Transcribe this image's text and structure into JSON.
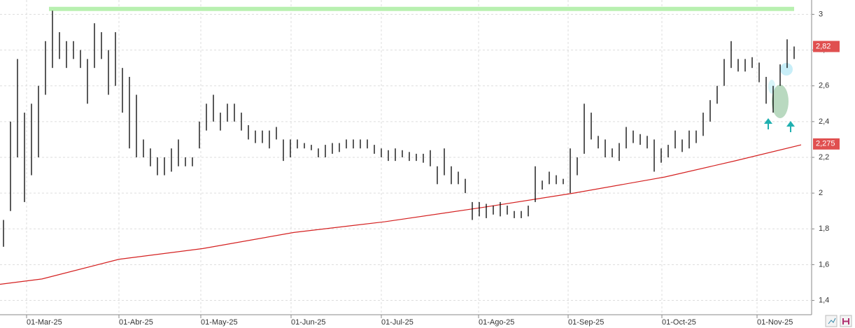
{
  "chart_data": {
    "type": "ohlc",
    "xlim": [
      -0.5,
      115.5
    ],
    "xticks": [
      {
        "value": 3.3,
        "label": "01-Mar-25"
      },
      {
        "value": 16.5,
        "label": "01-Abr-25"
      },
      {
        "value": 28.2,
        "label": "01-May-25"
      },
      {
        "value": 41.1,
        "label": "01-Jun-25"
      },
      {
        "value": 54,
        "label": "01-Jul-25"
      },
      {
        "value": 67.9,
        "label": "01-Ago-25"
      },
      {
        "value": 80.7,
        "label": "01-Sep-25"
      },
      {
        "value": 94.1,
        "label": "01-Oct-25"
      },
      {
        "value": 107.7,
        "label": "01-Nov-25"
      }
    ],
    "ylim": [
      1.32,
      3.08
    ],
    "yticks": [
      {
        "value": 1.4,
        "label": "1,4"
      },
      {
        "value": 1.6,
        "label": "1,6"
      },
      {
        "value": 1.8,
        "label": "1,8"
      },
      2,
      {
        "value": 2.2,
        "label": "2,2"
      },
      {
        "value": 2.4,
        "label": "2,4"
      },
      {
        "value": 2.6,
        "label": "2,6"
      },
      {
        "value": 2.8,
        "label": "2,8"
      },
      3
    ],
    "grid": true,
    "color": "#000000",
    "high": [
      1.85,
      2.4,
      2.75,
      2.45,
      2.5,
      2.6,
      2.85,
      3.02,
      2.9,
      2.85,
      2.85,
      2.8,
      2.75,
      2.95,
      2.9,
      2.8,
      2.9,
      2.7,
      2.65,
      2.55,
      2.3,
      2.25,
      2.2,
      2.2,
      2.25,
      2.3,
      2.2,
      2.2,
      2.4,
      2.5,
      2.55,
      2.45,
      2.5,
      2.5,
      2.45,
      2.38,
      2.35,
      2.35,
      2.35,
      2.37,
      2.3,
      2.3,
      2.3,
      2.28,
      2.27,
      2.25,
      2.27,
      2.28,
      2.28,
      2.3,
      2.3,
      2.3,
      2.3,
      2.27,
      2.25,
      2.24,
      2.25,
      2.24,
      2.23,
      2.22,
      2.22,
      2.24,
      2.15,
      2.25,
      2.15,
      2.12,
      2.08,
      1.95,
      1.95,
      1.94,
      1.93,
      1.95,
      1.93,
      1.9,
      1.9,
      1.93,
      2.15,
      2.07,
      2.12,
      2.1,
      2.08,
      2.25,
      2.2,
      2.5,
      2.45,
      2.32,
      2.3,
      2.25,
      2.28,
      2.37,
      2.35,
      2.33,
      2.32,
      2.3,
      2.25,
      2.27,
      2.35,
      2.3,
      2.35,
      2.35,
      2.45,
      2.52,
      2.6,
      2.75,
      2.85,
      2.75,
      2.75,
      2.76,
      2.73,
      2.65,
      2.6,
      2.72,
      2.86,
      2.82
    ],
    "low": [
      1.7,
      1.9,
      2.2,
      1.95,
      2.1,
      2.2,
      2.55,
      2.7,
      2.75,
      2.7,
      2.75,
      2.7,
      2.5,
      2.7,
      2.75,
      2.55,
      2.6,
      2.45,
      2.25,
      2.2,
      2.2,
      2.15,
      2.1,
      2.1,
      2.12,
      2.15,
      2.15,
      2.15,
      2.25,
      2.35,
      2.4,
      2.35,
      2.4,
      2.4,
      2.35,
      2.3,
      2.28,
      2.28,
      2.25,
      2.3,
      2.18,
      2.2,
      2.25,
      2.25,
      2.24,
      2.2,
      2.2,
      2.22,
      2.23,
      2.25,
      2.25,
      2.25,
      2.25,
      2.22,
      2.2,
      2.18,
      2.18,
      2.2,
      2.18,
      2.18,
      2.17,
      2.15,
      2.05,
      2.1,
      2.05,
      2.05,
      2.0,
      1.85,
      1.87,
      1.86,
      1.88,
      1.87,
      1.88,
      1.86,
      1.86,
      1.87,
      1.95,
      2.02,
      2.05,
      2.05,
      2.05,
      2.0,
      2.1,
      2.22,
      2.3,
      2.25,
      2.2,
      2.2,
      2.18,
      2.25,
      2.28,
      2.27,
      2.25,
      2.12,
      2.17,
      2.2,
      2.25,
      2.23,
      2.25,
      2.28,
      2.32,
      2.4,
      2.5,
      2.6,
      2.7,
      2.68,
      2.68,
      2.7,
      2.62,
      2.5,
      2.45,
      2.6,
      2.7,
      2.75
    ],
    "moving_average": {
      "color": "#d42020",
      "x": [
        -0.5,
        5.5,
        16.5,
        28.5,
        41.5,
        54.5,
        68.5,
        81.5,
        94.5,
        104.5,
        114
      ],
      "values": [
        1.49,
        1.52,
        1.63,
        1.69,
        1.78,
        1.84,
        1.92,
        2.0,
        2.09,
        2.18,
        2.27
      ]
    },
    "resistance": {
      "value": 3.03,
      "x": [
        6.5,
        113
      ],
      "color": "#b8f0b0"
    },
    "price_labels": [
      {
        "value": 2.82,
        "label": "2,82"
      },
      {
        "value": 2.275,
        "label": "2,275"
      }
    ],
    "price_label_color": "#e05050"
  }
}
